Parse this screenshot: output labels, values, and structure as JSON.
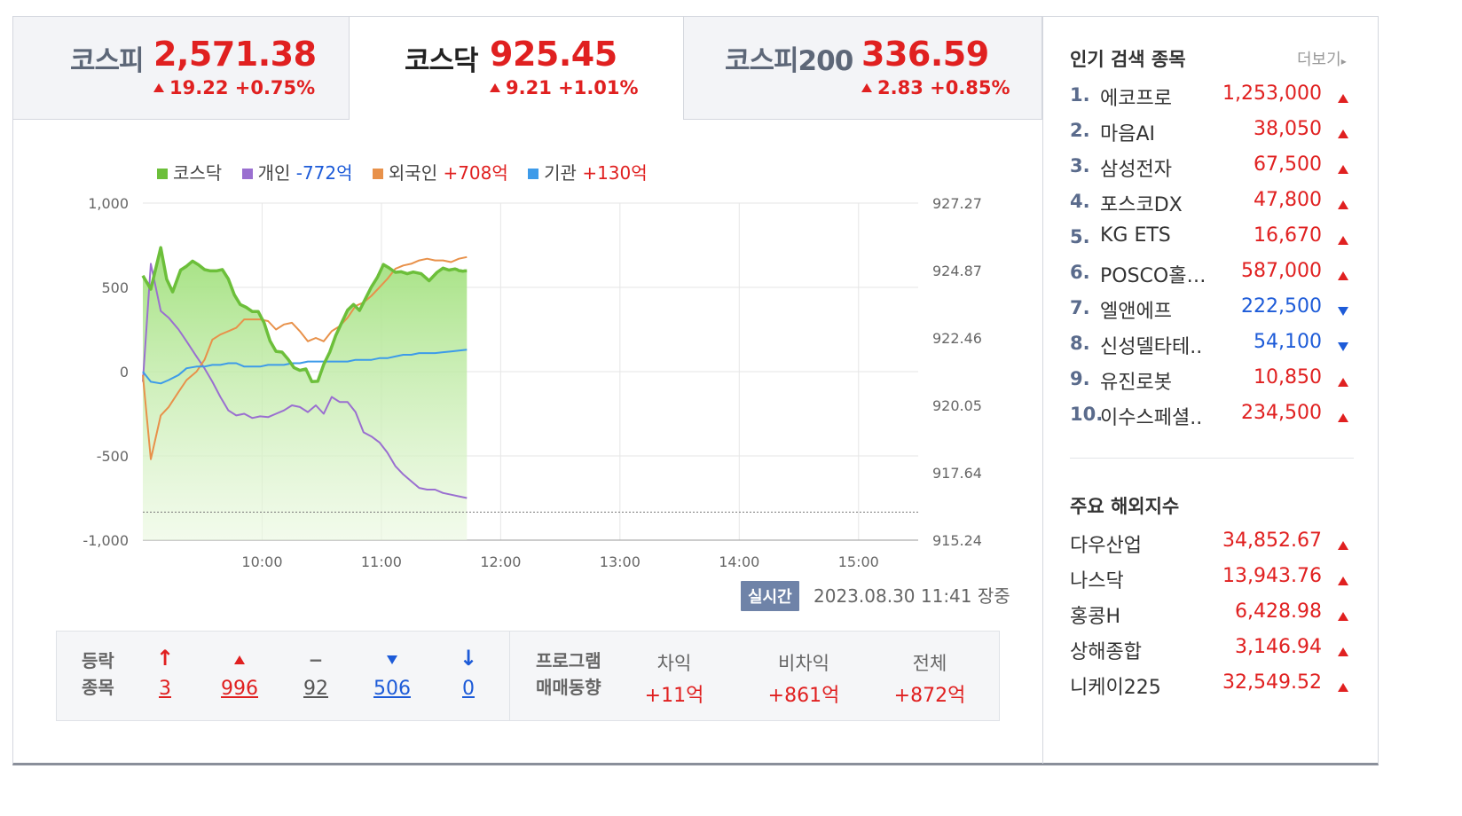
{
  "tabs": [
    {
      "name": "코스피",
      "value": "2,571.38",
      "change": "19.22 +0.75%"
    },
    {
      "name": "코스닥",
      "value": "925.45",
      "change": "9.21 +1.01%"
    },
    {
      "name": "코스피200",
      "value": "336.59",
      "change": "2.83 +0.85%"
    }
  ],
  "legend": [
    {
      "name": "코스닥",
      "value": "",
      "color": "#6cbf3a"
    },
    {
      "name": "개인",
      "value": "-772억",
      "color": "#9a6fd0"
    },
    {
      "name": "외국인",
      "value": "+708억",
      "color": "#e8914a"
    },
    {
      "name": "기관",
      "value": "+130억",
      "color": "#3d9be9"
    }
  ],
  "chart_data": {
    "type": "line",
    "x_ticks": [
      "10:00",
      "11:00",
      "12:00",
      "13:00",
      "14:00",
      "15:00"
    ],
    "y_left_ticks": [
      "1,000",
      "500",
      "0",
      "-500",
      "-1,000"
    ],
    "y_left_range": [
      -1000,
      1000
    ],
    "y_right_ticks": [
      "927.27",
      "924.87",
      "922.46",
      "920.05",
      "917.64",
      "915.24"
    ],
    "y_right_range": [
      915.24,
      927.27
    ],
    "reference_line": 916.24,
    "x_range_minutes": [
      540,
      930
    ],
    "series": [
      {
        "name": "코스닥",
        "axis": "right",
        "color": "#6cbf3a",
        "x": [
          540,
          544,
          549,
          552,
          555,
          559,
          562,
          565,
          568,
          571,
          574,
          577,
          580,
          583,
          586,
          589,
          592,
          595,
          598,
          601,
          604,
          607,
          610,
          613,
          616,
          619,
          622,
          625,
          628,
          631,
          634,
          637,
          640,
          643,
          646,
          649,
          652,
          655,
          658,
          661,
          664,
          667,
          670,
          673,
          676,
          680,
          684,
          688,
          691,
          694,
          697,
          698,
          699,
          700,
          701,
          702,
          703
        ],
        "y": [
          924.68,
          924.2,
          925.68,
          924.55,
          924.1,
          924.88,
          925.02,
          925.2,
          925.07,
          924.9,
          924.85,
          924.85,
          924.9,
          924.56,
          924.0,
          923.65,
          923.55,
          923.4,
          923.4,
          923.0,
          922.35,
          921.98,
          921.95,
          921.7,
          921.4,
          921.3,
          921.35,
          920.9,
          920.91,
          921.51,
          921.95,
          922.54,
          923.0,
          923.45,
          923.65,
          923.44,
          923.86,
          924.28,
          924.62,
          925.08,
          924.95,
          924.8,
          924.82,
          924.75,
          924.81,
          924.75,
          924.5,
          924.8,
          924.95,
          924.88,
          924.92,
          924.9,
          924.86,
          924.85,
          924.84,
          924.85,
          924.85
        ]
      },
      {
        "name": "개인",
        "axis": "left",
        "color": "#9a6fd0",
        "x": [
          540,
          544,
          549,
          553,
          558,
          562,
          567,
          571,
          575,
          579,
          583,
          587,
          591,
          595,
          599,
          603,
          607,
          611,
          615,
          619,
          623,
          627,
          631,
          635,
          639,
          643,
          647,
          651,
          655,
          659,
          663,
          667,
          671,
          675,
          679,
          683,
          687,
          691,
          695,
          699,
          703
        ],
        "y": [
          -60,
          640,
          360,
          320,
          250,
          180,
          90,
          20,
          -60,
          -150,
          -230,
          -260,
          -250,
          -275,
          -265,
          -270,
          -250,
          -230,
          -200,
          -210,
          -240,
          -200,
          -250,
          -150,
          -180,
          -180,
          -240,
          -360,
          -385,
          -420,
          -480,
          -560,
          -610,
          -650,
          -690,
          -700,
          -700,
          -720,
          -730,
          -740,
          -750
        ]
      },
      {
        "name": "외국인",
        "axis": "left",
        "color": "#e8914a",
        "x": [
          540,
          544,
          549,
          553,
          558,
          562,
          567,
          571,
          575,
          579,
          583,
          587,
          591,
          595,
          599,
          603,
          607,
          611,
          615,
          619,
          623,
          627,
          631,
          635,
          639,
          643,
          647,
          651,
          655,
          659,
          663,
          667,
          671,
          675,
          679,
          683,
          687,
          691,
          695,
          699,
          703
        ],
        "y": [
          -20,
          -520,
          -260,
          -210,
          -120,
          -50,
          0,
          70,
          190,
          220,
          240,
          260,
          310,
          310,
          310,
          300,
          250,
          280,
          290,
          240,
          180,
          200,
          180,
          240,
          270,
          320,
          390,
          410,
          450,
          500,
          550,
          610,
          630,
          640,
          660,
          670,
          660,
          660,
          650,
          670,
          680
        ]
      },
      {
        "name": "기관",
        "axis": "left",
        "color": "#3d9be9",
        "x": [
          540,
          544,
          549,
          553,
          558,
          562,
          567,
          571,
          575,
          579,
          583,
          587,
          591,
          595,
          599,
          603,
          607,
          611,
          615,
          619,
          623,
          627,
          631,
          635,
          639,
          643,
          647,
          651,
          655,
          659,
          663,
          667,
          671,
          675,
          679,
          683,
          687,
          691,
          695,
          699,
          703
        ],
        "y": [
          0,
          -60,
          -70,
          -50,
          -20,
          20,
          30,
          30,
          40,
          40,
          50,
          50,
          30,
          30,
          30,
          40,
          40,
          40,
          50,
          50,
          60,
          60,
          60,
          60,
          60,
          60,
          70,
          70,
          70,
          80,
          80,
          90,
          100,
          100,
          110,
          110,
          110,
          115,
          120,
          125,
          130
        ]
      }
    ]
  },
  "realtime": {
    "badge": "실시간",
    "timestamp": "2023.08.30 11:41",
    "status": "장중"
  },
  "breadth": {
    "label_line1": "등락",
    "label_line2": "종목",
    "upper_limit": "3",
    "up": "996",
    "flat": "92",
    "down": "506",
    "lower_limit": "0",
    "flat_symbol": "−"
  },
  "program": {
    "label_line1": "프로그램",
    "label_line2": "매매동향",
    "headers": [
      "차익",
      "비차익",
      "전체"
    ],
    "values": [
      "+11억",
      "+861억",
      "+872억"
    ]
  },
  "popular": {
    "title": "인기 검색 종목",
    "more": "더보기",
    "items": [
      {
        "rank": "1.",
        "name": "에코프로",
        "price": "1,253,000",
        "dir": "up"
      },
      {
        "rank": "2.",
        "name": "마음AI",
        "price": "38,050",
        "dir": "up"
      },
      {
        "rank": "3.",
        "name": "삼성전자",
        "price": "67,500",
        "dir": "up"
      },
      {
        "rank": "4.",
        "name": "포스코DX",
        "price": "47,800",
        "dir": "up"
      },
      {
        "rank": "5.",
        "name": "KG ETS",
        "price": "16,670",
        "dir": "up"
      },
      {
        "rank": "6.",
        "name": "POSCO홀…",
        "price": "587,000",
        "dir": "up"
      },
      {
        "rank": "7.",
        "name": "엘앤에프",
        "price": "222,500",
        "dir": "down"
      },
      {
        "rank": "8.",
        "name": "신성델타테..",
        "price": "54,100",
        "dir": "down"
      },
      {
        "rank": "9.",
        "name": "유진로봇",
        "price": "10,850",
        "dir": "up"
      },
      {
        "rank": "10.",
        "name": "이수스페셜..",
        "price": "234,500",
        "dir": "up"
      }
    ]
  },
  "world": {
    "title": "주요 해외지수",
    "items": [
      {
        "name": "다우산업",
        "value": "34,852.67"
      },
      {
        "name": "나스닥",
        "value": "13,943.76"
      },
      {
        "name": "홍콩H",
        "value": "6,428.98"
      },
      {
        "name": "상해종합",
        "value": "3,146.94"
      },
      {
        "name": "니케이225",
        "value": "32,549.52"
      }
    ]
  }
}
